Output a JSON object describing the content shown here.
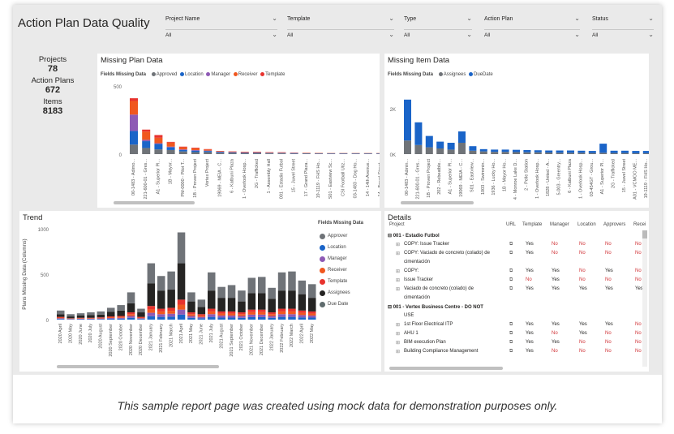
{
  "report": {
    "title": "Action Plan Data Quality"
  },
  "slicers": [
    {
      "label": "Project Name",
      "value": "All"
    },
    {
      "label": "Template",
      "value": "All"
    },
    {
      "label": "Type",
      "value": "All"
    },
    {
      "label": "Action Plan",
      "value": "All"
    },
    {
      "label": "Status",
      "value": "All"
    }
  ],
  "kpis": {
    "projects_label": "Projects",
    "projects_value": "78",
    "action_plans_label": "Action Plans",
    "action_plans_value": "672",
    "items_label": "Items",
    "items_value": "8183"
  },
  "colors": {
    "approver": "#6f7378",
    "location": "#1a64c8",
    "manager": "#8e5ab5",
    "receiver": "#f0571f",
    "template": "#e8332e",
    "assignees": "#252423",
    "due_date": "#5f6b6d"
  },
  "missing_plan": {
    "title": "Missing Plan Data",
    "legend_title": "Fields Missing Data",
    "legend": [
      "Approved",
      "Location",
      "Manager",
      "Receiver",
      "Template"
    ],
    "chart_data": {
      "type": "bar",
      "stacked": true,
      "ylim": [
        0,
        500
      ],
      "yticks": [
        "500",
        "0"
      ],
      "categories": [
        "00-1483 - Adimo...",
        "221-600-01 - Gres...",
        "A1 - Superior Pl...",
        "1B - Mayor...",
        "PM-0000 - Pilot T...",
        "1B - Proven Project",
        "Vortex Project",
        "19069 - MEIA - C...",
        "6 - Katbuni Plaza",
        "1 - Overlook Hosp...",
        "2G - Trafficked",
        "1 - Assembly Hall",
        "001 - Estadio Futbol",
        "15 - Juwel Street",
        "17 - Grand Plaza...",
        "19-1119 - FHS Ho...",
        "S01 - Eastview Sc...",
        "CSI Football Utiz...",
        "03-1483 - Dog Ho...",
        "14 - 14th Avenue...",
        "14 - Broad Street..."
      ],
      "series": [
        {
          "name": "Approved",
          "values": [
            70,
            45,
            35,
            30,
            20,
            15,
            15,
            10,
            8,
            6,
            6,
            5,
            5,
            4,
            4,
            3,
            3,
            3,
            3,
            3,
            3
          ]
        },
        {
          "name": "Location",
          "values": [
            100,
            50,
            40,
            20,
            10,
            10,
            8,
            6,
            5,
            4,
            4,
            3,
            3,
            3,
            2,
            2,
            2,
            2,
            2,
            2,
            2
          ]
        },
        {
          "name": "Manager",
          "values": [
            120,
            10,
            5,
            5,
            5,
            5,
            3,
            2,
            2,
            2,
            2,
            2,
            2,
            2,
            1,
            1,
            1,
            1,
            1,
            1,
            1
          ]
        },
        {
          "name": "Receiver",
          "values": [
            100,
            60,
            40,
            30,
            15,
            12,
            8,
            3,
            3,
            3,
            3,
            3,
            2,
            2,
            2,
            2,
            1,
            1,
            1,
            1,
            1
          ]
        },
        {
          "name": "Template",
          "values": [
            20,
            15,
            20,
            5,
            5,
            5,
            3,
            2,
            2,
            2,
            2,
            2,
            2,
            1,
            1,
            1,
            1,
            1,
            1,
            1,
            1
          ]
        }
      ]
    }
  },
  "missing_item": {
    "title": "Missing Item Data",
    "legend_title": "Fields Missing Data",
    "legend": [
      "Assignees",
      "DueDate"
    ],
    "chart_data": {
      "type": "bar",
      "stacked": true,
      "ylim": [
        0,
        3000
      ],
      "yticks": [
        "2K",
        "0K"
      ],
      "categories": [
        "00-1483 - Admin...",
        "221-600-01 - Gres...",
        "1B - Proven Project",
        "202 - Rebeatble...",
        "A1 - Superior Pl...",
        "19069 - MEIA - C...",
        "S01 - Eastview...",
        "1003 - Swimmin...",
        "1936 - Lucky Ho...",
        "1B - Mayor Ho...",
        "4 - Monroe Lake D...",
        "2 - Pelle Station",
        "1 - Overlook Hosp...",
        "1828 - United - A...",
        "5-003 - Greentry...",
        "6 - Katbuni Plaza",
        "1 - Overlook Hosp...",
        "03-454GT - Grou...",
        "A1 - Superior Pl...",
        "2G - Trafficked",
        "15 - Juwel Street",
        "A01 - VCMOO ME...",
        "19-1119 - FHS Ho..."
      ],
      "series": [
        {
          "name": "Assignees",
          "values": [
            600,
            400,
            300,
            250,
            200,
            500,
            150,
            120,
            100,
            100,
            90,
            80,
            80,
            70,
            60,
            60,
            60,
            50,
            60,
            50,
            50,
            40,
            40
          ]
        },
        {
          "name": "DueDate",
          "values": [
            1800,
            1000,
            500,
            300,
            300,
            500,
            200,
            100,
            100,
            100,
            100,
            100,
            90,
            90,
            100,
            100,
            90,
            90,
            400,
            100,
            100,
            100,
            100
          ]
        }
      ]
    }
  },
  "trend": {
    "title": "Trend",
    "legend_title": "Fields Missing Data",
    "legend": [
      "Approver",
      "Location",
      "Manager",
      "Receiver",
      "Template",
      "Assignees",
      "Due Date"
    ],
    "chart_data": {
      "type": "bar",
      "stacked": true,
      "ylabel": "Plans Missing Data (Columns)",
      "ylim": [
        0,
        1000
      ],
      "yticks": [
        "1000",
        "500",
        "0"
      ],
      "categories": [
        "2020 April",
        "2020 May",
        "2020 June",
        "2020 July",
        "2020 August",
        "2020 September",
        "2020 October",
        "2020 November",
        "2020 December",
        "2021 January",
        "2021 February",
        "2021 March",
        "2021 April",
        "2021 May",
        "2021 June",
        "2021 July",
        "2021 August",
        "2021 September",
        "2021 October",
        "2021 November",
        "2021 December",
        "2022 January",
        "2022 February",
        "2022 March",
        "2022 April",
        "2022 May"
      ],
      "totals": [
        100,
        60,
        70,
        80,
        90,
        130,
        160,
        300,
        120,
        620,
        480,
        530,
        960,
        300,
        220,
        520,
        360,
        380,
        320,
        460,
        470,
        350,
        520,
        530,
        430,
        390
      ],
      "assignees": [
        30,
        20,
        25,
        30,
        30,
        50,
        60,
        100,
        50,
        250,
        200,
        200,
        400,
        120,
        80,
        200,
        150,
        150,
        120,
        180,
        180,
        150,
        200,
        200,
        180,
        150
      ],
      "colored": [
        30,
        15,
        20,
        20,
        25,
        35,
        40,
        80,
        30,
        150,
        120,
        130,
        220,
        80,
        60,
        120,
        90,
        90,
        80,
        110,
        110,
        80,
        120,
        120,
        100,
        90
      ]
    }
  },
  "details": {
    "title": "Details",
    "headers": [
      "Project",
      "URL",
      "Template",
      "Manager",
      "Location",
      "Approvers",
      "Recei"
    ],
    "rows": [
      {
        "group": true,
        "project": "001 - Estadio Futbol"
      },
      {
        "project": "COPY: Issue Tracker",
        "t": "Yes",
        "m": "No",
        "l": "No",
        "a": "No",
        "r": "No"
      },
      {
        "project": "COPY: Vaciado de concreto (colado) de",
        "t": "Yes",
        "m": "No",
        "l": "No",
        "a": "No",
        "r": "No"
      },
      {
        "project": "cimentación"
      },
      {
        "project": "COPY:",
        "t": "Yes",
        "m": "Yes",
        "l": "No",
        "a": "Yes",
        "r": "No"
      },
      {
        "project": "Issue Tracker",
        "t": "No",
        "m": "Yes",
        "l": "No",
        "a": "No",
        "r": "No"
      },
      {
        "project": "Vaciado de concreto (colado) de",
        "t": "Yes",
        "m": "Yes",
        "l": "Yes",
        "a": "Yes",
        "r": "Yes"
      },
      {
        "project": "cimentación"
      },
      {
        "group": true,
        "project": "001 - Vortex Business Centre - DO NOT"
      },
      {
        "project": "USE"
      },
      {
        "project": "1st Floor Electrical ITP",
        "t": "Yes",
        "m": "Yes",
        "l": "Yes",
        "a": "Yes",
        "r": "No"
      },
      {
        "project": "AHU 1",
        "t": "Yes",
        "m": "No",
        "l": "Yes",
        "a": "No",
        "r": "No"
      },
      {
        "project": "BIM execution Plan",
        "t": "Yes",
        "m": "Yes",
        "l": "No",
        "a": "No",
        "r": "No"
      },
      {
        "project": "Building Compliance Management",
        "t": "Yes",
        "m": "No",
        "l": "No",
        "a": "No",
        "r": "No"
      }
    ]
  },
  "caption": "This sample report page was created using mock data for demonstration purposes only."
}
